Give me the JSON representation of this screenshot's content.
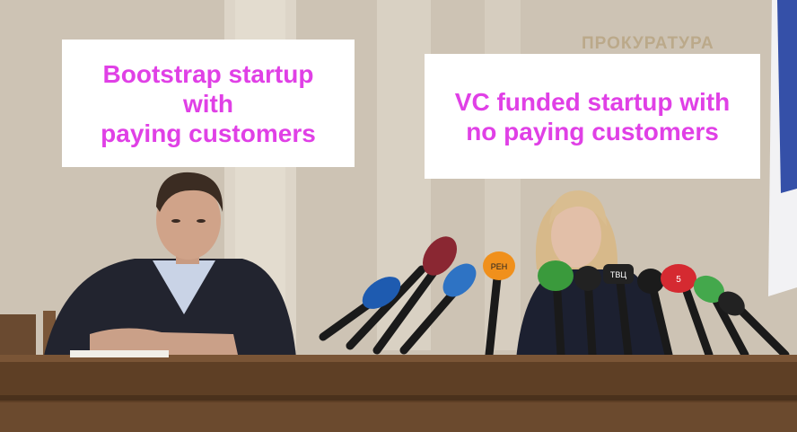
{
  "captions": {
    "left": "Bootstrap startup\nwith\npaying customers",
    "right": "VC funded startup with\nno paying customers"
  },
  "wall_sign": "ПРОКУРАТУРА",
  "mic_labels": [
    "РЕН",
    "ТВЦ",
    "5"
  ],
  "colors": {
    "caption_text": "#e040e6",
    "caption_bg": "#ffffff",
    "wall": "#cfc6b8",
    "table": "#5e3f25"
  }
}
